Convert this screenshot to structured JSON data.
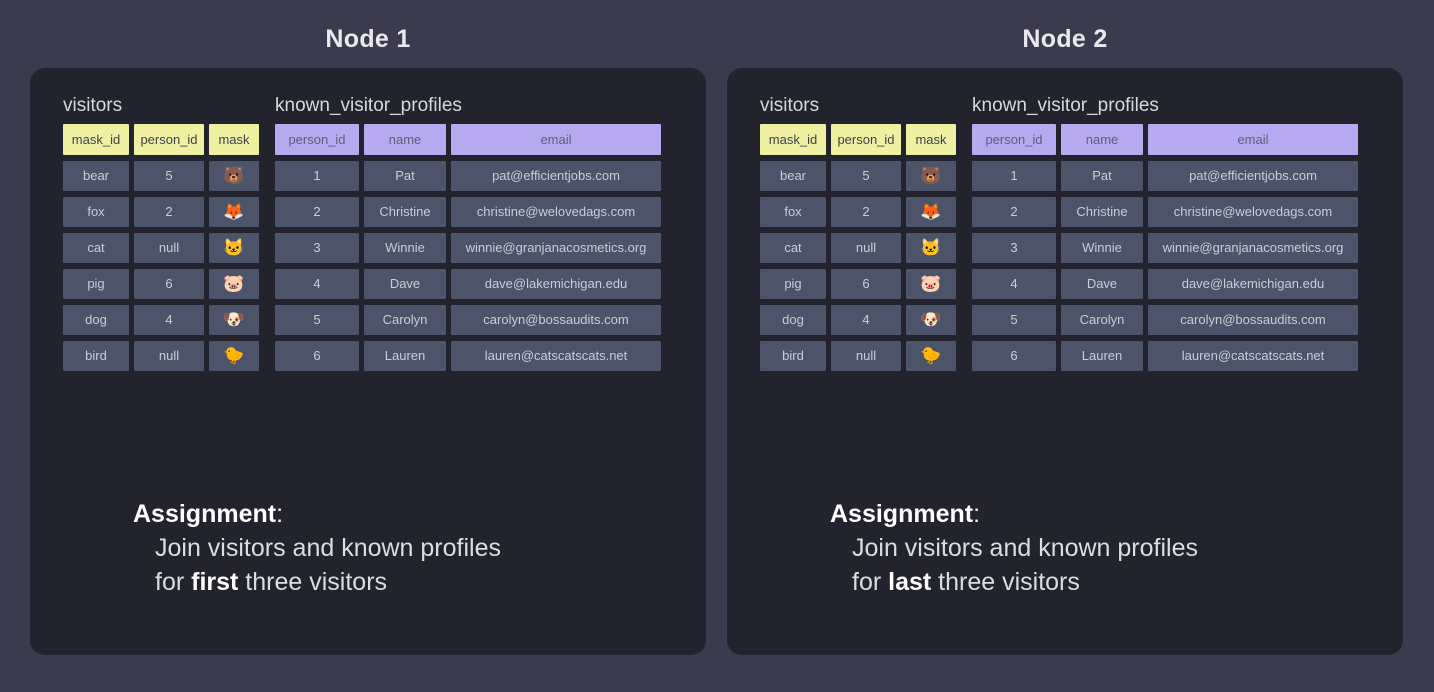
{
  "colors": {
    "page_bg": "#3b3b4d",
    "panel_bg": "#23232e",
    "yellow_header_bg": "#eff0a1",
    "yellow_header_text": "#41414d",
    "purple_header_bg": "#b7a9f0",
    "purple_header_text": "#5f5f78",
    "cell_bg": "#4b5468",
    "cell_text": "#c9cdd8"
  },
  "emoji_names": {
    "🐻": "bear-emoji-icon",
    "🦊": "fox-emoji-icon",
    "🐱": "cat-emoji-icon",
    "🐷": "pig-emoji-icon",
    "🐶": "dog-emoji-icon",
    "🐤": "bird-emoji-icon"
  },
  "nodes": [
    {
      "title": "Node 1",
      "visitors": {
        "title": "visitors",
        "columns": [
          "mask_id",
          "person_id",
          "mask"
        ],
        "rows": [
          [
            "bear",
            "5",
            "🐻"
          ],
          [
            "fox",
            "2",
            "🦊"
          ],
          [
            "cat",
            "null",
            "🐱"
          ],
          [
            "pig",
            "6",
            "🐷"
          ],
          [
            "dog",
            "4",
            "🐶"
          ],
          [
            "bird",
            "null",
            "🐤"
          ]
        ]
      },
      "profiles": {
        "title": "known_visitor_profiles",
        "columns": [
          "person_id",
          "name",
          "email"
        ],
        "rows": [
          [
            "1",
            "Pat",
            "pat@efficientjobs.com"
          ],
          [
            "2",
            "Christine",
            "christine@welovedags.com"
          ],
          [
            "3",
            "Winnie",
            "winnie@granjanacosmetics.org"
          ],
          [
            "4",
            "Dave",
            "dave@lakemichigan.edu"
          ],
          [
            "5",
            "Carolyn",
            "carolyn@bossaudits.com"
          ],
          [
            "6",
            "Lauren",
            "lauren@catscatscats.net"
          ]
        ]
      },
      "assignment": {
        "heading": "Assignment",
        "colon": ":",
        "line1": "Join visitors and known profiles",
        "line2_prefix": "for ",
        "line2_bold": "first",
        "line2_suffix": " three visitors"
      }
    },
    {
      "title": "Node 2",
      "visitors": {
        "title": "visitors",
        "columns": [
          "mask_id",
          "person_id",
          "mask"
        ],
        "rows": [
          [
            "bear",
            "5",
            "🐻"
          ],
          [
            "fox",
            "2",
            "🦊"
          ],
          [
            "cat",
            "null",
            "🐱"
          ],
          [
            "pig",
            "6",
            "🐷"
          ],
          [
            "dog",
            "4",
            "🐶"
          ],
          [
            "bird",
            "null",
            "🐤"
          ]
        ]
      },
      "profiles": {
        "title": "known_visitor_profiles",
        "columns": [
          "person_id",
          "name",
          "email"
        ],
        "rows": [
          [
            "1",
            "Pat",
            "pat@efficientjobs.com"
          ],
          [
            "2",
            "Christine",
            "christine@welovedags.com"
          ],
          [
            "3",
            "Winnie",
            "winnie@granjanacosmetics.org"
          ],
          [
            "4",
            "Dave",
            "dave@lakemichigan.edu"
          ],
          [
            "5",
            "Carolyn",
            "carolyn@bossaudits.com"
          ],
          [
            "6",
            "Lauren",
            "lauren@catscatscats.net"
          ]
        ]
      },
      "assignment": {
        "heading": "Assignment",
        "colon": ":",
        "line1": "Join visitors and known profiles",
        "line2_prefix": "for ",
        "line2_bold": "last",
        "line2_suffix": " three visitors"
      }
    }
  ]
}
